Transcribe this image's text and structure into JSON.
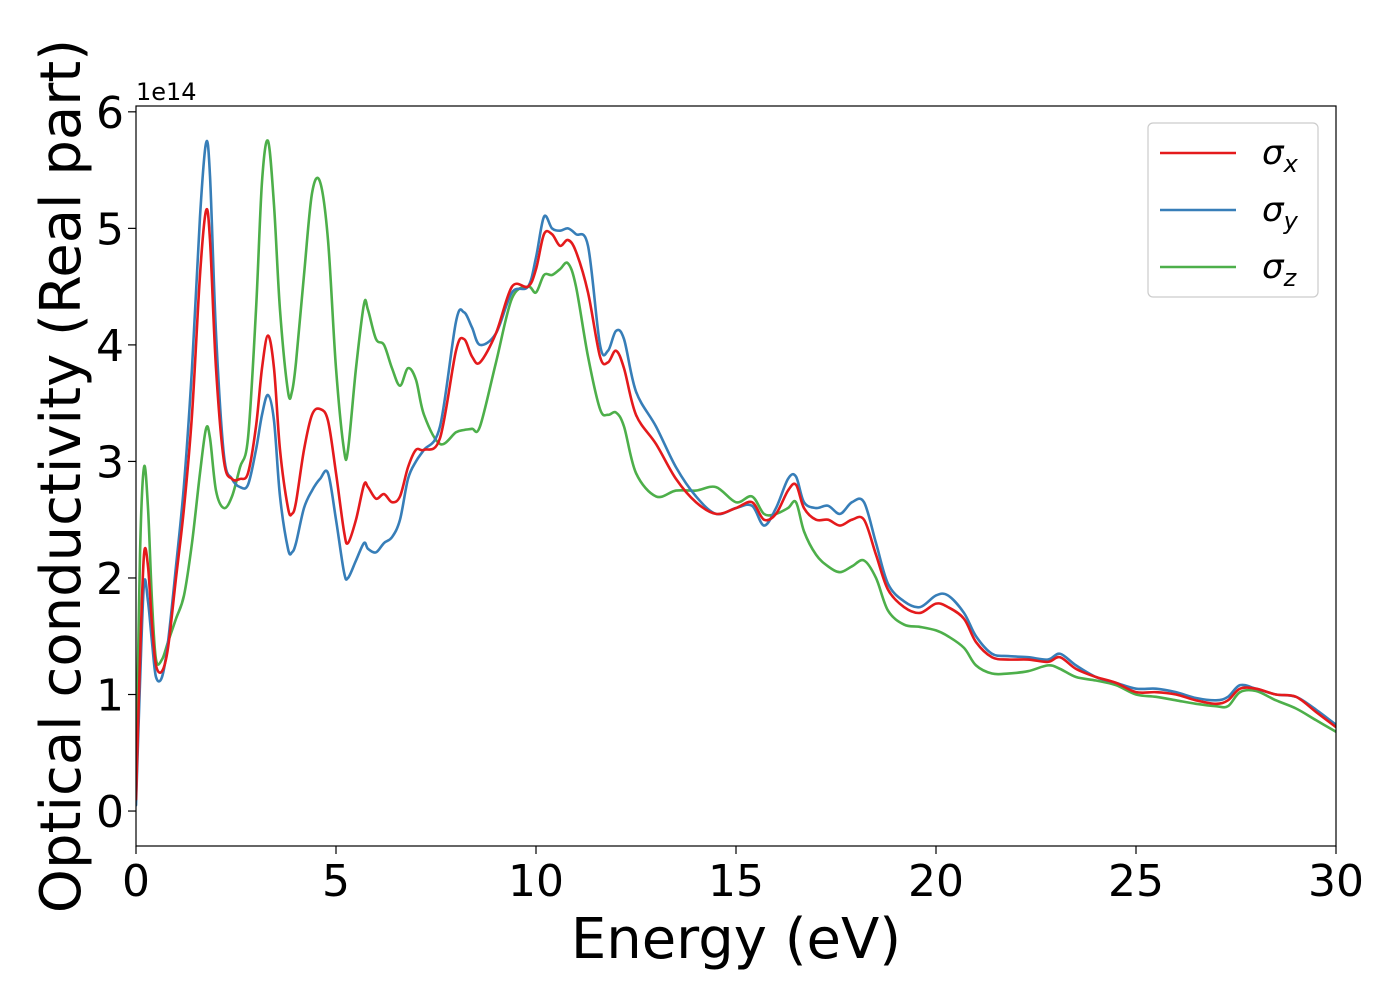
{
  "chart_data": {
    "type": "line",
    "xlabel": "Energy (eV)",
    "ylabel": "Optical conductivity (Real part)",
    "y_offset_text": "1e14",
    "y_multiplier": 100000000000000.0,
    "xlim": [
      0,
      30
    ],
    "ylim": [
      -0.3,
      6.05
    ],
    "xticks": [
      0,
      5,
      10,
      15,
      20,
      25,
      30
    ],
    "yticks": [
      0,
      1,
      2,
      3,
      4,
      5,
      6
    ],
    "grid": false,
    "legend_position": "top-right",
    "series": [
      {
        "name": "σx",
        "label_base": "σ",
        "label_sub": "x",
        "color": "#e41a1c",
        "x": [
          0.0,
          0.1,
          0.2,
          0.3,
          0.4,
          0.5,
          0.65,
          0.8,
          1.0,
          1.2,
          1.4,
          1.6,
          1.75,
          1.85,
          2.0,
          2.2,
          2.4,
          2.6,
          2.8,
          3.0,
          3.15,
          3.3,
          3.45,
          3.6,
          3.8,
          3.9,
          4.0,
          4.2,
          4.4,
          4.6,
          4.8,
          5.0,
          5.2,
          5.3,
          5.5,
          5.7,
          5.8,
          6.0,
          6.2,
          6.4,
          6.6,
          6.8,
          7.0,
          7.2,
          7.6,
          8.0,
          8.2,
          8.4,
          8.6,
          9.0,
          9.4,
          9.8,
          10.0,
          10.2,
          10.4,
          10.6,
          10.8,
          11.0,
          11.3,
          11.6,
          11.8,
          12.0,
          12.2,
          12.5,
          13.0,
          13.5,
          14.0,
          14.5,
          15.0,
          15.4,
          15.7,
          16.0,
          16.3,
          16.5,
          16.7,
          17.0,
          17.3,
          17.6,
          17.9,
          18.2,
          18.5,
          18.8,
          19.2,
          19.6,
          20.0,
          20.3,
          20.7,
          21.0,
          21.4,
          21.8,
          22.3,
          22.8,
          23.1,
          23.5,
          24.0,
          24.5,
          25.0,
          25.5,
          26.0,
          26.5,
          27.0,
          27.3,
          27.6,
          28.0,
          28.5,
          29.0,
          29.5,
          30.0
        ],
        "y": [
          0.1,
          1.3,
          2.2,
          2.1,
          1.6,
          1.25,
          1.2,
          1.4,
          2.0,
          2.6,
          3.4,
          4.6,
          5.15,
          4.9,
          3.8,
          3.0,
          2.85,
          2.85,
          2.9,
          3.3,
          3.8,
          4.08,
          3.8,
          3.1,
          2.6,
          2.55,
          2.65,
          3.1,
          3.4,
          3.45,
          3.35,
          2.9,
          2.4,
          2.3,
          2.5,
          2.8,
          2.78,
          2.68,
          2.72,
          2.65,
          2.7,
          2.95,
          3.1,
          3.1,
          3.2,
          3.95,
          4.05,
          3.9,
          3.85,
          4.1,
          4.5,
          4.5,
          4.65,
          4.95,
          4.95,
          4.85,
          4.9,
          4.8,
          4.45,
          3.9,
          3.85,
          3.95,
          3.8,
          3.4,
          3.15,
          2.85,
          2.65,
          2.55,
          2.6,
          2.65,
          2.5,
          2.55,
          2.75,
          2.8,
          2.6,
          2.5,
          2.5,
          2.45,
          2.5,
          2.5,
          2.2,
          1.9,
          1.75,
          1.7,
          1.78,
          1.75,
          1.65,
          1.45,
          1.32,
          1.3,
          1.3,
          1.28,
          1.32,
          1.22,
          1.15,
          1.1,
          1.02,
          1.02,
          1.0,
          0.95,
          0.92,
          0.95,
          1.05,
          1.05,
          1.0,
          0.98,
          0.85,
          0.72
        ]
      },
      {
        "name": "σy",
        "label_base": "σ",
        "label_sub": "y",
        "color": "#377eb8",
        "x": [
          0.0,
          0.1,
          0.2,
          0.3,
          0.4,
          0.5,
          0.65,
          0.8,
          1.0,
          1.2,
          1.4,
          1.6,
          1.75,
          1.85,
          2.0,
          2.2,
          2.4,
          2.6,
          2.8,
          3.0,
          3.15,
          3.3,
          3.45,
          3.6,
          3.8,
          3.9,
          4.0,
          4.2,
          4.4,
          4.6,
          4.8,
          5.0,
          5.2,
          5.3,
          5.5,
          5.7,
          5.8,
          6.0,
          6.2,
          6.4,
          6.6,
          6.8,
          7.0,
          7.2,
          7.6,
          8.0,
          8.2,
          8.4,
          8.6,
          9.0,
          9.4,
          9.8,
          10.0,
          10.2,
          10.4,
          10.6,
          10.8,
          11.0,
          11.3,
          11.6,
          11.8,
          12.0,
          12.2,
          12.5,
          13.0,
          13.5,
          14.0,
          14.5,
          15.0,
          15.4,
          15.7,
          16.0,
          16.3,
          16.5,
          16.7,
          17.0,
          17.3,
          17.6,
          17.9,
          18.2,
          18.5,
          18.8,
          19.2,
          19.6,
          20.0,
          20.3,
          20.7,
          21.0,
          21.4,
          21.8,
          22.3,
          22.8,
          23.1,
          23.5,
          24.0,
          24.5,
          25.0,
          25.5,
          26.0,
          26.5,
          27.0,
          27.3,
          27.6,
          28.0,
          28.5,
          29.0,
          29.5,
          30.0
        ],
        "y": [
          0.05,
          1.1,
          1.95,
          1.8,
          1.45,
          1.15,
          1.15,
          1.45,
          2.1,
          2.8,
          3.8,
          5.1,
          5.73,
          5.45,
          4.1,
          3.05,
          2.85,
          2.78,
          2.8,
          3.1,
          3.4,
          3.57,
          3.35,
          2.7,
          2.25,
          2.22,
          2.3,
          2.6,
          2.75,
          2.85,
          2.9,
          2.5,
          2.05,
          2.0,
          2.15,
          2.3,
          2.25,
          2.22,
          2.3,
          2.35,
          2.5,
          2.85,
          3.0,
          3.1,
          3.3,
          4.2,
          4.28,
          4.15,
          4.0,
          4.1,
          4.45,
          4.5,
          4.75,
          5.1,
          5.0,
          4.98,
          5.0,
          4.95,
          4.85,
          4.0,
          3.95,
          4.12,
          4.05,
          3.6,
          3.3,
          2.95,
          2.7,
          2.55,
          2.6,
          2.62,
          2.45,
          2.6,
          2.85,
          2.87,
          2.65,
          2.6,
          2.62,
          2.55,
          2.65,
          2.65,
          2.3,
          1.95,
          1.8,
          1.75,
          1.85,
          1.85,
          1.7,
          1.5,
          1.35,
          1.33,
          1.32,
          1.3,
          1.35,
          1.25,
          1.15,
          1.1,
          1.05,
          1.05,
          1.02,
          0.97,
          0.95,
          0.98,
          1.08,
          1.05,
          1.0,
          0.98,
          0.87,
          0.74
        ]
      },
      {
        "name": "σz",
        "label_base": "σ",
        "label_sub": "z",
        "color": "#4daf4a",
        "x": [
          0.0,
          0.1,
          0.2,
          0.3,
          0.4,
          0.5,
          0.65,
          0.8,
          1.0,
          1.2,
          1.4,
          1.6,
          1.75,
          1.85,
          2.0,
          2.2,
          2.4,
          2.6,
          2.8,
          3.0,
          3.15,
          3.3,
          3.45,
          3.6,
          3.8,
          3.9,
          4.0,
          4.2,
          4.4,
          4.6,
          4.8,
          5.0,
          5.2,
          5.3,
          5.5,
          5.7,
          5.8,
          6.0,
          6.2,
          6.4,
          6.6,
          6.8,
          7.0,
          7.2,
          7.6,
          8.0,
          8.2,
          8.4,
          8.6,
          9.0,
          9.4,
          9.8,
          10.0,
          10.2,
          10.4,
          10.6,
          10.8,
          11.0,
          11.3,
          11.6,
          11.8,
          12.0,
          12.2,
          12.5,
          13.0,
          13.5,
          14.0,
          14.5,
          15.0,
          15.4,
          15.7,
          16.0,
          16.3,
          16.5,
          16.7,
          17.0,
          17.3,
          17.6,
          17.9,
          18.2,
          18.5,
          18.8,
          19.2,
          19.6,
          20.0,
          20.3,
          20.7,
          21.0,
          21.4,
          21.8,
          22.3,
          22.8,
          23.1,
          23.5,
          24.0,
          24.5,
          25.0,
          25.5,
          26.0,
          26.5,
          27.0,
          27.3,
          27.6,
          28.0,
          28.5,
          29.0,
          29.5,
          30.0
        ],
        "y": [
          0.2,
          2.2,
          2.95,
          2.6,
          1.8,
          1.3,
          1.3,
          1.45,
          1.65,
          1.85,
          2.3,
          2.9,
          3.28,
          3.2,
          2.75,
          2.6,
          2.7,
          2.95,
          3.2,
          4.3,
          5.4,
          5.75,
          5.2,
          4.3,
          3.6,
          3.6,
          3.85,
          4.6,
          5.3,
          5.4,
          4.9,
          3.8,
          3.1,
          3.1,
          3.8,
          4.35,
          4.3,
          4.05,
          4.0,
          3.8,
          3.65,
          3.8,
          3.7,
          3.4,
          3.15,
          3.25,
          3.27,
          3.28,
          3.3,
          3.85,
          4.4,
          4.5,
          4.45,
          4.6,
          4.6,
          4.65,
          4.7,
          4.5,
          3.9,
          3.45,
          3.4,
          3.42,
          3.3,
          2.9,
          2.7,
          2.75,
          2.75,
          2.78,
          2.65,
          2.7,
          2.55,
          2.55,
          2.6,
          2.65,
          2.4,
          2.2,
          2.1,
          2.05,
          2.1,
          2.15,
          2.0,
          1.72,
          1.6,
          1.58,
          1.55,
          1.5,
          1.4,
          1.25,
          1.18,
          1.18,
          1.2,
          1.25,
          1.22,
          1.15,
          1.12,
          1.08,
          1.0,
          0.98,
          0.95,
          0.92,
          0.9,
          0.9,
          1.02,
          1.03,
          0.95,
          0.88,
          0.78,
          0.68
        ]
      }
    ]
  }
}
